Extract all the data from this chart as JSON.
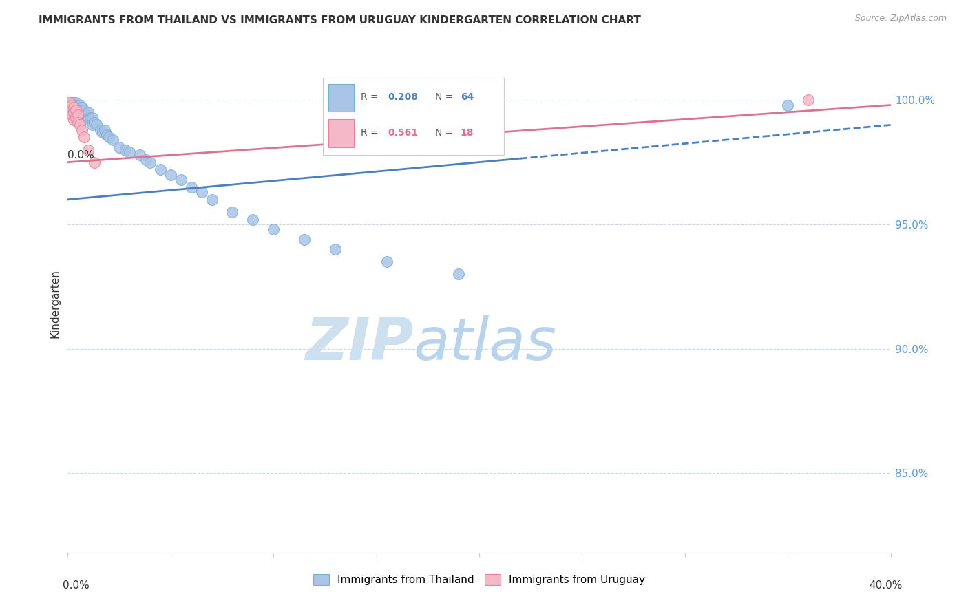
{
  "title": "IMMIGRANTS FROM THAILAND VS IMMIGRANTS FROM URUGUAY KINDERGARTEN CORRELATION CHART",
  "source": "Source: ZipAtlas.com",
  "ylabel": "Kindergarten",
  "xmin": 0.0,
  "xmax": 0.4,
  "ymin": 0.818,
  "ymax": 1.018,
  "thailand_R": 0.208,
  "thailand_N": 64,
  "uruguay_R": 0.561,
  "uruguay_N": 18,
  "thailand_color": "#aac4e8",
  "thailand_edge": "#7baed4",
  "uruguay_color": "#f4b8c8",
  "uruguay_edge": "#e8809a",
  "trendline_thailand_color": "#4a7fc1",
  "trendline_uruguay_color": "#e07090",
  "grid_color": "#c8d8e8",
  "watermark_color": "#ddeef8",
  "ytick_positions": [
    0.85,
    0.9,
    0.95,
    1.0
  ],
  "ytick_labels": [
    "85.0%",
    "90.0%",
    "95.0%",
    "100.0%"
  ],
  "thailand_x": [
    0.001,
    0.001,
    0.001,
    0.002,
    0.002,
    0.002,
    0.002,
    0.002,
    0.003,
    0.003,
    0.003,
    0.003,
    0.003,
    0.004,
    0.004,
    0.004,
    0.004,
    0.004,
    0.004,
    0.005,
    0.005,
    0.005,
    0.006,
    0.006,
    0.006,
    0.007,
    0.007,
    0.007,
    0.008,
    0.008,
    0.009,
    0.01,
    0.01,
    0.011,
    0.012,
    0.012,
    0.013,
    0.014,
    0.016,
    0.017,
    0.018,
    0.019,
    0.02,
    0.022,
    0.025,
    0.028,
    0.03,
    0.035,
    0.038,
    0.04,
    0.045,
    0.05,
    0.055,
    0.06,
    0.065,
    0.07,
    0.08,
    0.09,
    0.1,
    0.115,
    0.13,
    0.155,
    0.19,
    0.35
  ],
  "thailand_y": [
    0.999,
    0.998,
    0.997,
    0.999,
    0.998,
    0.997,
    0.996,
    0.995,
    0.999,
    0.998,
    0.997,
    0.996,
    0.994,
    0.999,
    0.998,
    0.997,
    0.995,
    0.994,
    0.992,
    0.998,
    0.996,
    0.994,
    0.998,
    0.996,
    0.993,
    0.997,
    0.995,
    0.992,
    0.996,
    0.993,
    0.994,
    0.995,
    0.992,
    0.993,
    0.993,
    0.99,
    0.991,
    0.99,
    0.988,
    0.987,
    0.988,
    0.986,
    0.985,
    0.984,
    0.981,
    0.98,
    0.979,
    0.978,
    0.976,
    0.975,
    0.972,
    0.97,
    0.968,
    0.965,
    0.963,
    0.96,
    0.955,
    0.952,
    0.948,
    0.944,
    0.94,
    0.935,
    0.93,
    0.998
  ],
  "uruguay_x": [
    0.001,
    0.001,
    0.002,
    0.002,
    0.002,
    0.003,
    0.003,
    0.003,
    0.004,
    0.004,
    0.005,
    0.005,
    0.006,
    0.007,
    0.008,
    0.01,
    0.013,
    0.36
  ],
  "uruguay_y": [
    0.999,
    0.997,
    0.998,
    0.996,
    0.994,
    0.997,
    0.995,
    0.992,
    0.996,
    0.993,
    0.994,
    0.991,
    0.99,
    0.988,
    0.985,
    0.98,
    0.975,
    1.0
  ],
  "th_trend_x0": 0.0,
  "th_trend_y0": 0.96,
  "th_trend_x1": 0.4,
  "th_trend_y1": 0.99,
  "th_trend_dash_start": 0.22,
  "ur_trend_x0": 0.0,
  "ur_trend_y0": 0.975,
  "ur_trend_x1": 0.4,
  "ur_trend_y1": 0.998
}
